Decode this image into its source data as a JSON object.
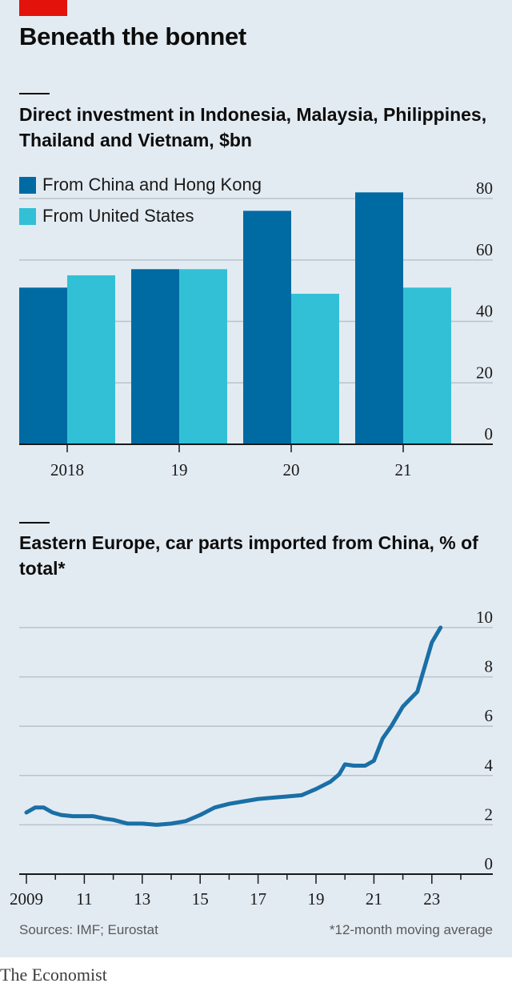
{
  "header": {
    "title": "Beneath the bonnet"
  },
  "colors": {
    "accent_red": "#e3120b",
    "china": "#006ba2",
    "us": "#32c0d6",
    "line": "#1a6fa6",
    "background": "#e3ebf2"
  },
  "chart_data": [
    {
      "type": "bar",
      "title": "Direct investment in Indonesia, Malaysia, Philippines, Thailand and Vietnam, $bn",
      "categories": [
        "2018",
        "19",
        "20",
        "21"
      ],
      "series": [
        {
          "name": "From China and Hong Kong",
          "values": [
            51,
            57,
            76,
            82
          ]
        },
        {
          "name": "From United States",
          "values": [
            55,
            57,
            49,
            51
          ]
        }
      ],
      "ylim": [
        0,
        80
      ],
      "yticks": [
        "0",
        "20",
        "40",
        "60",
        "80"
      ],
      "grid": true,
      "legend": "top-left"
    },
    {
      "type": "line",
      "title": "Eastern Europe, car parts imported from China, % of total*",
      "xticks": [
        "2009",
        "11",
        "13",
        "15",
        "17",
        "19",
        "21",
        "23"
      ],
      "yticks": [
        "0",
        "2",
        "4",
        "6",
        "8",
        "10"
      ],
      "ylim": [
        0,
        10
      ],
      "xlim": [
        2009,
        2025
      ],
      "grid": true,
      "series": [
        {
          "x": [
            2009.0,
            2009.3,
            2009.6,
            2009.9,
            2010.2,
            2010.6,
            2011.0,
            2011.3,
            2011.7,
            2012.0,
            2012.5,
            2013.0,
            2013.5,
            2014.0,
            2014.5,
            2015.0,
            2015.5,
            2016.0,
            2016.5,
            2017.0,
            2017.5,
            2018.0,
            2018.5,
            2019.0,
            2019.5,
            2019.8,
            2020.0,
            2020.3,
            2020.7,
            2021.0,
            2021.3,
            2021.6,
            2022.0,
            2022.5,
            2022.8,
            2023.0,
            2023.3
          ],
          "y": [
            2.5,
            2.7,
            2.7,
            2.5,
            2.4,
            2.35,
            2.35,
            2.35,
            2.25,
            2.2,
            2.05,
            2.05,
            2.0,
            2.05,
            2.15,
            2.4,
            2.7,
            2.85,
            2.95,
            3.05,
            3.1,
            3.15,
            3.2,
            3.45,
            3.75,
            4.05,
            4.45,
            4.4,
            4.4,
            4.6,
            5.5,
            6.0,
            6.8,
            7.4,
            8.6,
            9.4,
            10.0
          ]
        }
      ]
    }
  ],
  "footer": {
    "sources": "Sources: IMF; Eurostat",
    "note": "*12-month moving average",
    "brand": "The Economist"
  }
}
